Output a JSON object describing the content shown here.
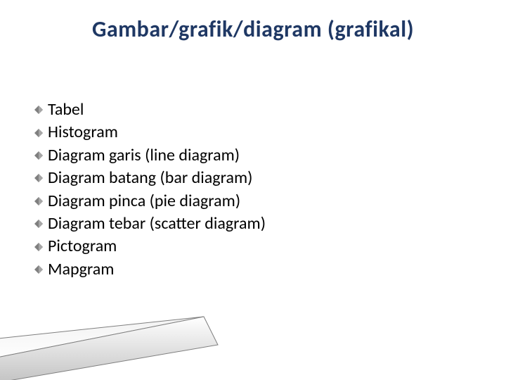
{
  "title": {
    "text": "Gambar/grafik/diagram (grafikal)",
    "color": "#1f3864",
    "fontsize": 32
  },
  "bullet": {
    "color": "#7f7f7f",
    "size": 12
  },
  "list": {
    "fontsize": 24,
    "color": "#000000",
    "items": [
      "Tabel",
      "Histogram",
      "Diagram garis (line diagram)",
      "Diagram batang (bar diagram)",
      "Diagram pinca (pie diagram)",
      "Diagram tebar (scatter diagram)",
      "Pictogram",
      "Mapgram"
    ]
  },
  "wedge": {
    "fill_top": "#f2f2f2",
    "fill_bottom": "#bfbfbf",
    "stroke": "#7f7f7f"
  }
}
